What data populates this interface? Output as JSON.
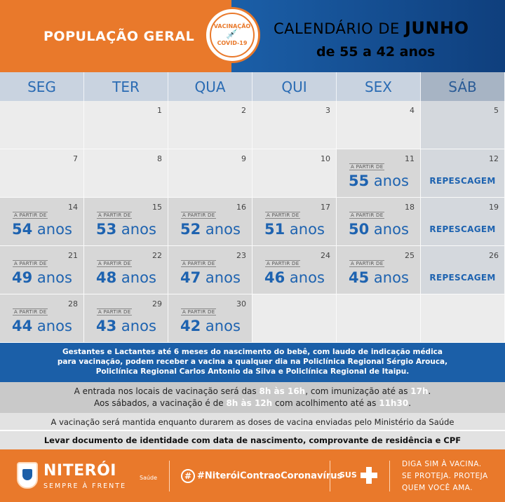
{
  "header": {
    "left_title": "POPULAÇÃO GERAL",
    "seal_top": "VACINAÇÃO",
    "seal_bottom": "COVID-19",
    "line1_prefix": "CALENDÁRIO DE ",
    "line1_month": "JUNHO",
    "line2": "de 55 a 42 anos"
  },
  "days": [
    "SEG",
    "TER",
    "QUA",
    "QUI",
    "SEX",
    "SÁB"
  ],
  "label_from": "A PARTIR DE",
  "label_years": "anos",
  "label_repescagem": "REPESCAGEM",
  "weeks": [
    [
      {
        "n": "",
        "age": ""
      },
      {
        "n": "1",
        "age": ""
      },
      {
        "n": "2",
        "age": ""
      },
      {
        "n": "3",
        "age": ""
      },
      {
        "n": "4",
        "age": ""
      },
      {
        "n": "5",
        "age": ""
      }
    ],
    [
      {
        "n": "7",
        "age": ""
      },
      {
        "n": "8",
        "age": ""
      },
      {
        "n": "9",
        "age": ""
      },
      {
        "n": "10",
        "age": ""
      },
      {
        "n": "11",
        "age": "55"
      },
      {
        "n": "12",
        "rep": true
      }
    ],
    [
      {
        "n": "14",
        "age": "54"
      },
      {
        "n": "15",
        "age": "53"
      },
      {
        "n": "16",
        "age": "52"
      },
      {
        "n": "17",
        "age": "51"
      },
      {
        "n": "18",
        "age": "50"
      },
      {
        "n": "19",
        "rep": true
      }
    ],
    [
      {
        "n": "21",
        "age": "49"
      },
      {
        "n": "22",
        "age": "48"
      },
      {
        "n": "23",
        "age": "47"
      },
      {
        "n": "24",
        "age": "46"
      },
      {
        "n": "25",
        "age": "45"
      },
      {
        "n": "26",
        "rep": true
      }
    ],
    [
      {
        "n": "28",
        "age": "44"
      },
      {
        "n": "29",
        "age": "43"
      },
      {
        "n": "30",
        "age": "42"
      },
      {
        "n": "",
        "age": ""
      },
      {
        "n": "",
        "age": ""
      },
      {
        "n": "",
        "age": ""
      }
    ]
  ],
  "info": {
    "blue_l1": "Gestantes e Lactantes até 6 meses do nascimento do bebê, com laudo de indicação médica",
    "blue_l2": "para vacinação, podem receber a vacina a qualquer dia na Policlínica Regional Sérgio Arouca,",
    "blue_l3": "Policlínica Regional Carlos Antonio da Silva e Policlínica Regional de Itaipu.",
    "grey_l1_a": "A entrada nos locais de vacinação será das ",
    "grey_l1_b": "8h às 16h",
    "grey_l1_c": ", com imunização até as ",
    "grey_l1_d": "17h",
    "grey_l1_e": ".",
    "grey_l2_a": "Aos sábados, a vacinação é de ",
    "grey_l2_b": "8h às 12h",
    "grey_l2_c": " com acolhimento até as ",
    "grey_l2_d": "11h30",
    "grey_l2_e": ".",
    "maintained": "A vacinação será mantida enquanto durarem as doses de vacina enviadas pelo Ministério da Saúde",
    "document": "Levar documento de identidade com data de nascimento, comprovante de residência e CPF"
  },
  "footer": {
    "brand": "NITERÓI",
    "brand_sub": "SEMPRE À FRENTE",
    "saude": "Saúde",
    "hashtag": "#NiteróiContraoCoronavírus",
    "sus": "SUS",
    "slogan_l1": "DIGA SIM À VACINA.",
    "slogan_l2": "SE PROTEJA. PROTEJA",
    "slogan_l3": "QUEM VOCÊ AMA."
  }
}
